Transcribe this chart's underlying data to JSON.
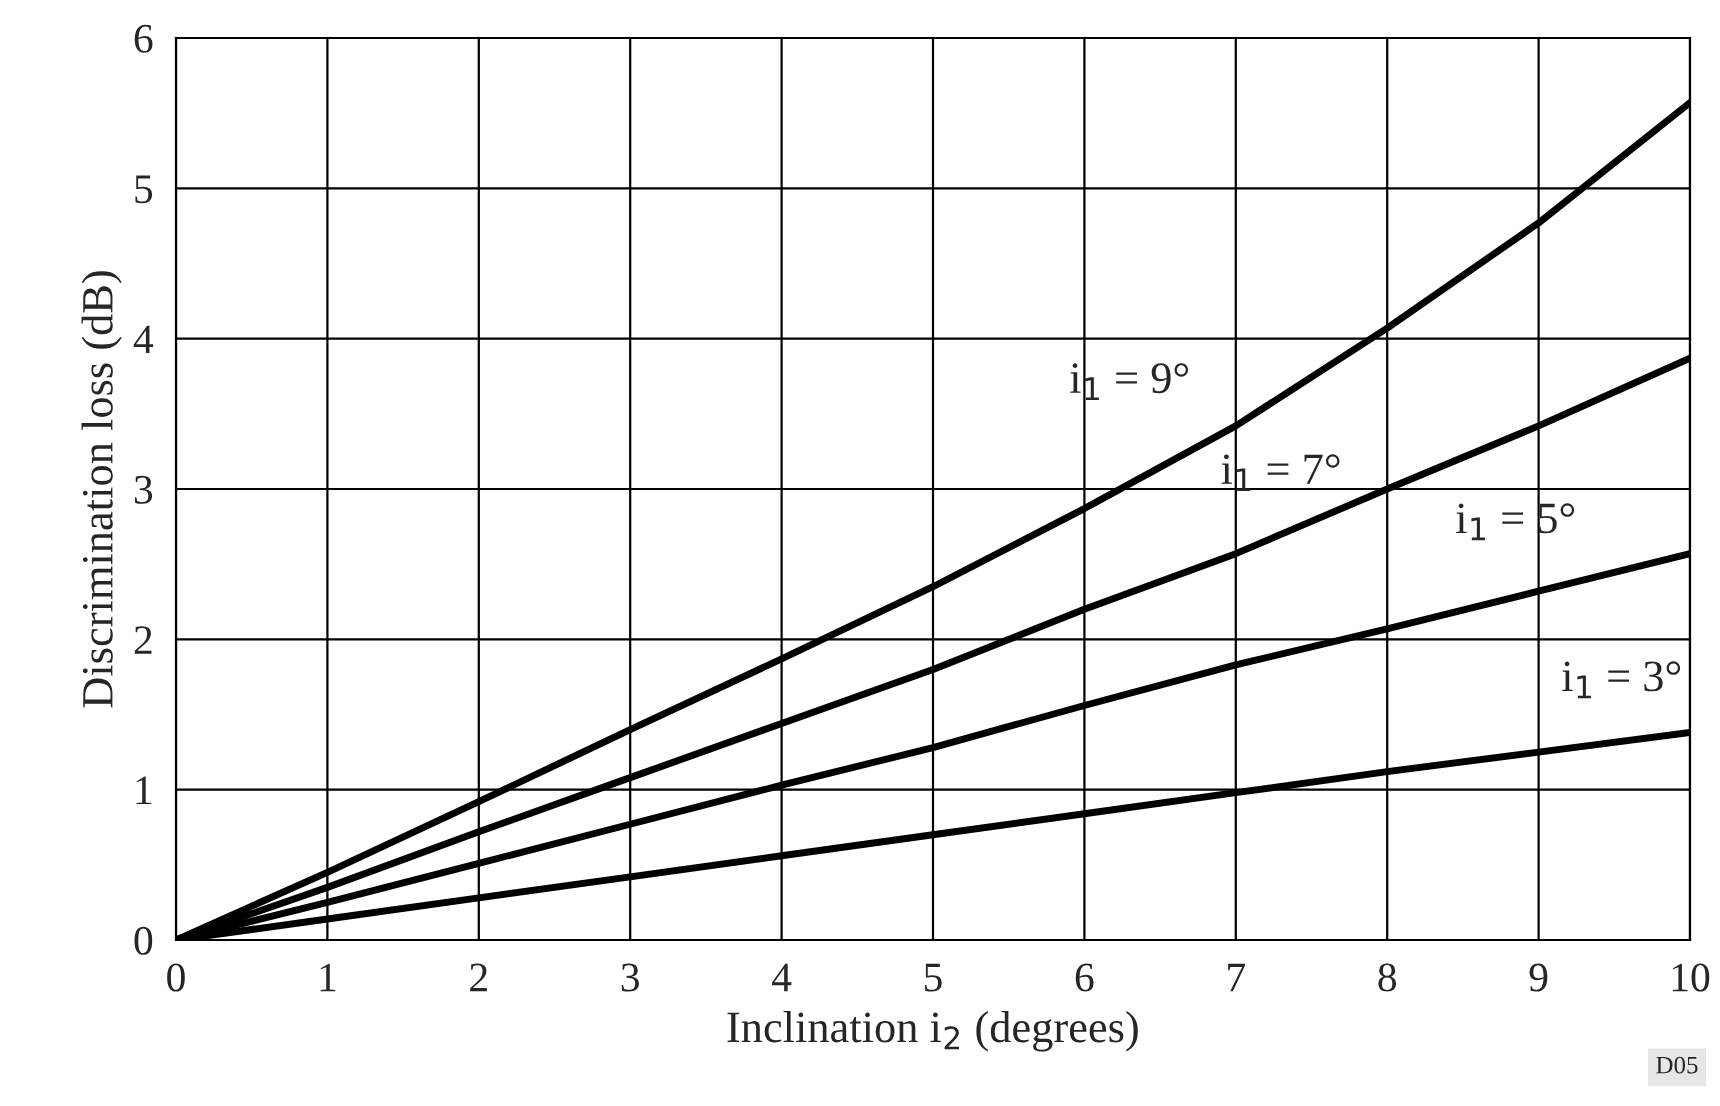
{
  "chart_data": {
    "type": "line",
    "xlabel": "Inclination i$_{2}$ (degrees)",
    "ylabel": "Discrimination loss (dB)",
    "x": [
      0,
      1,
      2,
      3,
      4,
      5,
      6,
      7,
      8,
      9,
      10
    ],
    "series": [
      {
        "name": "i$_{1}$ = 9°",
        "color": "#000000",
        "values": [
          0,
          0.45,
          0.92,
          1.4,
          1.87,
          2.35,
          2.87,
          3.42,
          4.07,
          4.77,
          5.57
        ]
      },
      {
        "name": "i$_{1}$ = 7°",
        "color": "#000000",
        "values": [
          0,
          0.35,
          0.72,
          1.08,
          1.44,
          1.8,
          2.2,
          2.57,
          3.0,
          3.42,
          3.87
        ]
      },
      {
        "name": "i$_{1}$ = 5°",
        "color": "#000000",
        "values": [
          0,
          0.25,
          0.51,
          0.77,
          1.03,
          1.28,
          1.56,
          1.83,
          2.07,
          2.32,
          2.57
        ]
      },
      {
        "name": "i$_{1}$ = 3°",
        "color": "#000000",
        "values": [
          0,
          0.14,
          0.28,
          0.42,
          0.56,
          0.7,
          0.84,
          0.98,
          1.12,
          1.25,
          1.38
        ]
      }
    ],
    "annotations": [
      "D05"
    ],
    "xlim": [
      0,
      10
    ],
    "ylim": [
      0,
      6
    ],
    "xticks": [
      0,
      1,
      2,
      3,
      4,
      5,
      6,
      7,
      8,
      9,
      10
    ],
    "yticks": [
      0,
      1,
      2,
      3,
      4,
      5,
      6
    ],
    "grid": true,
    "legend": false,
    "marker": "none",
    "line_style": "solid"
  }
}
